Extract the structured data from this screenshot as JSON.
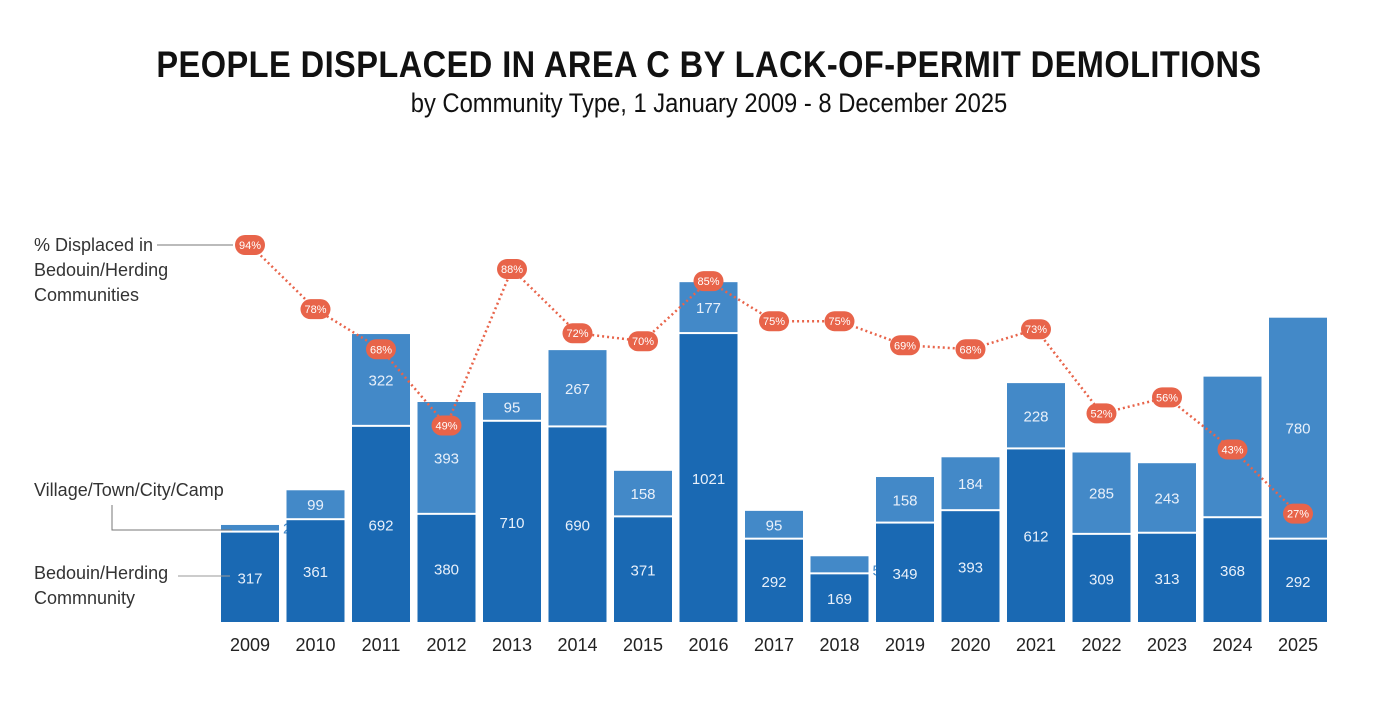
{
  "chart_data": {
    "type": "bar",
    "stacked": true,
    "title": "PEOPLE DISPLACED IN AREA C BY LACK-OF-PERMIT DEMOLITIONS",
    "subtitle": "by Community Type, 1 January 2009 - 8 December 2025",
    "categories": [
      "2009",
      "2010",
      "2011",
      "2012",
      "2013",
      "2014",
      "2015",
      "2016",
      "2017",
      "2018",
      "2019",
      "2020",
      "2021",
      "2022",
      "2023",
      "2024",
      "2025"
    ],
    "series": [
      {
        "name": "Bedouin/Herding Commnunity",
        "color": "#1a69b3",
        "values": [
          317,
          361,
          692,
          380,
          710,
          690,
          371,
          1021,
          292,
          169,
          349,
          393,
          612,
          309,
          313,
          368,
          292
        ],
        "labels": [
          "317",
          "361",
          "692",
          "380",
          "710",
          "690",
          "371",
          "1021",
          "292",
          "169",
          "349",
          "393",
          "612",
          "309",
          "313",
          "368",
          "292"
        ]
      },
      {
        "name": "Village/Town/City/Camp",
        "color": "#4389c8",
        "values": [
          20,
          99,
          322,
          393,
          95,
          267,
          158,
          177,
          95,
          57,
          158,
          184,
          228,
          285,
          243,
          495,
          780
        ],
        "labels": [
          "20",
          "99",
          "322",
          "393",
          "95",
          "267",
          "158",
          "177",
          "95",
          "57",
          "158",
          "184",
          "228",
          "285",
          "243",
          "",
          "780"
        ]
      }
    ],
    "line": {
      "name": "% Displaced in Bedouin/Herding Communities",
      "color": "#e8644a",
      "values": [
        94,
        78,
        68,
        49,
        88,
        72,
        70,
        85,
        75,
        75,
        69,
        68,
        73,
        52,
        56,
        43,
        27
      ],
      "labels": [
        "94%",
        "78%",
        "68%",
        "49%",
        "88%",
        "72%",
        "70%",
        "85%",
        "75%",
        "75%",
        "69%",
        "68%",
        "73%",
        "52%",
        "56%",
        "43%",
        "27%"
      ]
    },
    "legend": {
      "line_label_lines": [
        "% Displaced in",
        "Bedouin/Herding",
        "Communities"
      ],
      "village_label": "Village/Town/City/Camp",
      "bedouin_label_lines": [
        "Bedouin/Herding",
        "Commnunity"
      ]
    }
  }
}
